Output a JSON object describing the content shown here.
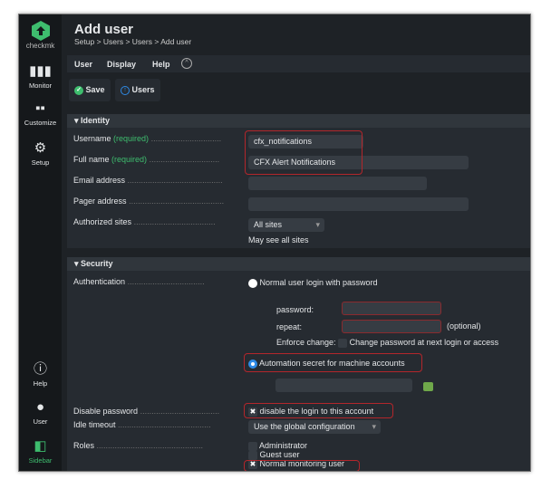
{
  "sidebar": {
    "logo_text": "checkmk",
    "items": [
      {
        "label": "Monitor",
        "icon": "bar-chart-icon"
      },
      {
        "label": "Customize",
        "icon": "grid-icon"
      },
      {
        "label": "Setup",
        "icon": "gear-icon"
      },
      {
        "label": "Help",
        "icon": "info-icon"
      },
      {
        "label": "User",
        "icon": "user-icon"
      },
      {
        "label": "Sidebar",
        "icon": "sidebar-icon"
      }
    ]
  },
  "header": {
    "title": "Add user",
    "breadcrumb": "Setup > Users > Users > Add user"
  },
  "menu": {
    "items": [
      "User",
      "Display",
      "Help"
    ]
  },
  "toolbar": {
    "save": "Save",
    "users": "Users"
  },
  "identity": {
    "title": "Identity",
    "username_label": "Username",
    "required": "(required)",
    "username_value": "cfx_notifications",
    "fullname_label": "Full name",
    "fullname_value": "CFX Alert Notifications",
    "email_label": "Email address",
    "pager_label": "Pager address",
    "sites_label": "Authorized sites",
    "sites_value": "All sites",
    "sites_note": "May see all sites"
  },
  "security": {
    "title": "Security",
    "auth_label": "Authentication",
    "opt_password": "Normal user login with password",
    "password_label": "password:",
    "repeat_label": "repeat:",
    "optional": "(optional)",
    "enforce_label": "Enforce change:",
    "enforce_text": "Change password at next login or access",
    "opt_automation": "Automation secret for machine accounts",
    "disable_label": "Disable password",
    "disable_text": "disable the login to this account",
    "idle_label": "Idle timeout",
    "idle_value": "Use the global configuration",
    "roles_label": "Roles",
    "roles": [
      "Administrator",
      "Guest user",
      "Normal monitoring user"
    ]
  },
  "colors": {
    "accent": "#3ebd6e",
    "highlight": "#b3262b",
    "radio": "#2e8ae6"
  }
}
